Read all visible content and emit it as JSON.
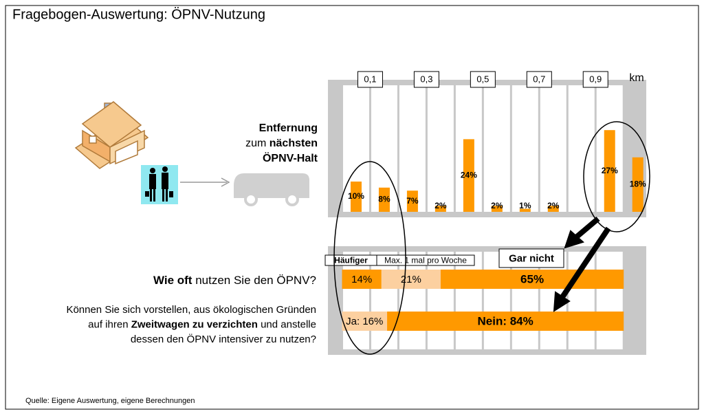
{
  "title": "Fragebogen-Auswertung: ÖPNV-Nutzung",
  "source": "Quelle: Eigene Auswertung, eigene Berechnungen",
  "distance_label": [
    [
      {
        "text": "Entfernung",
        "bold": true
      }
    ],
    [
      {
        "text": "zum ",
        "bold": false
      },
      {
        "text": "nächsten",
        "bold": true
      }
    ],
    [
      {
        "text": "ÖPNV-Halt",
        "bold": true
      }
    ]
  ],
  "chart_data": [
    {
      "type": "bar",
      "x": [
        0.05,
        0.15,
        0.25,
        0.35,
        0.45,
        0.55,
        0.65,
        0.75,
        0.95,
        1.05
      ],
      "values": [
        10,
        8,
        7,
        2,
        24,
        2,
        1,
        2,
        27,
        18
      ],
      "value_labels": [
        "10%",
        "8%",
        "7%",
        "2%",
        "24%",
        "2%",
        "1%",
        "2%",
        "27%",
        "18%"
      ],
      "color": "#ff9900",
      "xlim": [
        -0.05,
        1.08
      ],
      "xticks": [
        {
          "value": 0.1,
          "label": "0,1"
        },
        {
          "value": 0.3,
          "label": "0,3"
        },
        {
          "value": 0.5,
          "label": "0,5"
        },
        {
          "value": 0.7,
          "label": "0,7"
        },
        {
          "value": 0.9,
          "label": "0,9"
        }
      ],
      "xlabel": "km",
      "ylim": [
        0,
        30
      ]
    },
    {
      "type": "stacked-barh",
      "legend": [
        "Häufiger",
        "Max. 1 mal pro Woche",
        "Gar nicht"
      ],
      "xlim": [
        0,
        100
      ],
      "rows": [
        {
          "question": [
            [
              {
                "text": "Wie oft",
                "bold": true
              },
              {
                "text": " nutzen Sie den ÖPNV?",
                "bold": false
              }
            ]
          ],
          "values": [
            14,
            21,
            65
          ],
          "value_labels": [
            "14%",
            "21%",
            "65%"
          ],
          "colors": [
            "#ff9900",
            "#fcd0a0",
            "#ff9900"
          ]
        },
        {
          "question": [
            [
              {
                "text": "Können Sie sich vorstellen, aus ökologischen Gründen",
                "bold": false
              }
            ],
            [
              {
                "text": "auf ihren ",
                "bold": false
              },
              {
                "text": "Zweitwagen zu verzichten",
                "bold": true
              },
              {
                "text": " und anstelle",
                "bold": false
              }
            ],
            [
              {
                "text": "dessen den ÖPNV intensiver zu nutzen?",
                "bold": false
              }
            ]
          ],
          "values": [
            16,
            84
          ],
          "value_labels": [
            "Ja: 16%",
            "Nein: 84%"
          ],
          "colors": [
            "#fcd0a0",
            "#ff9900"
          ]
        }
      ]
    }
  ]
}
